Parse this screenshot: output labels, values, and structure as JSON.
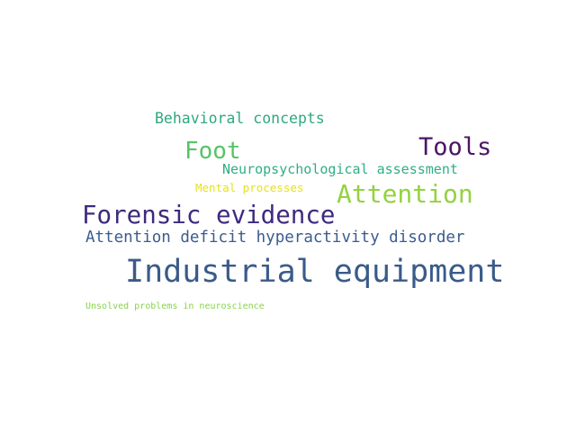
{
  "words": [
    {
      "text": "Behavioral concepts",
      "color": "#2fa882"
    },
    {
      "text": "Foot",
      "color": "#55c466"
    },
    {
      "text": "Tools",
      "color": "#4b1563"
    },
    {
      "text": "Neuropsychological assessment",
      "color": "#2fae85"
    },
    {
      "text": "Mental processes",
      "color": "#e5e21c"
    },
    {
      "text": "Attention",
      "color": "#94d240"
    },
    {
      "text": "Forensic evidence",
      "color": "#3e2a7f"
    },
    {
      "text": "Attention deficit hyperactivity disorder",
      "color": "#3b5d8c"
    },
    {
      "text": "Industrial equipment",
      "color": "#3a5b89"
    },
    {
      "text": "Unsolved problems in neuroscience",
      "color": "#86d549"
    }
  ]
}
